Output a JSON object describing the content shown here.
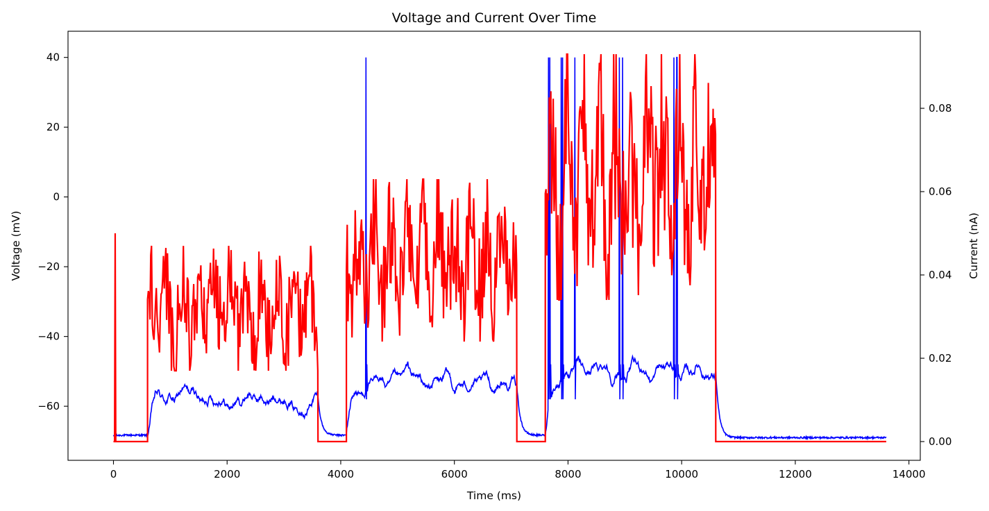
{
  "chart_data": {
    "type": "line",
    "title": "Voltage and Current Over Time",
    "xlabel": "Time (ms)",
    "ylabel_left": "Voltage (mV)",
    "ylabel_right": "Current (nA)",
    "xlim": [
      -800,
      14200
    ],
    "ylim_left": [
      -75.5,
      47.5
    ],
    "ylim_right": [
      -0.0045,
      0.0985
    ],
    "x_ticks": [
      0,
      2000,
      4000,
      6000,
      8000,
      10000,
      12000,
      14000
    ],
    "x_tick_labels": [
      "0",
      "2000",
      "4000",
      "6000",
      "8000",
      "10000",
      "12000",
      "14000"
    ],
    "y_left_ticks": [
      -60,
      -40,
      -20,
      0,
      20,
      40
    ],
    "y_left_tick_labels": [
      "−60",
      "−40",
      "−20",
      "0",
      "20",
      "40"
    ],
    "y_right_ticks": [
      0.0,
      0.02,
      0.04,
      0.06,
      0.08
    ],
    "y_right_tick_labels": [
      "0.00",
      "0.02",
      "0.04",
      "0.06",
      "0.08"
    ],
    "grid": false,
    "legend": "none",
    "series": [
      {
        "axis": "left",
        "color": "#0000ff",
        "baseline_mV": -68.5,
        "segments": [
          {
            "x": [
              0,
              600
            ],
            "mean": -68.3,
            "kind": "rest"
          },
          {
            "x": [
              600,
              3600
            ],
            "mean": -57.5,
            "kind": "drive"
          },
          {
            "x": [
              3600,
              4100
            ],
            "mean": -68.3,
            "kind": "rest"
          },
          {
            "x": [
              4100,
              7100
            ],
            "mean": -54.0,
            "kind": "drive"
          },
          {
            "x": [
              7100,
              7600
            ],
            "mean": -68.3,
            "kind": "rest"
          },
          {
            "x": [
              7600,
              10600
            ],
            "mean": -50.0,
            "kind": "drive"
          },
          {
            "x": [
              10600,
              13600
            ],
            "mean": -69.0,
            "kind": "rest"
          }
        ],
        "spikes_ms": [
          4440,
          7650,
          7680,
          7880,
          7900,
          8120,
          8900,
          8960,
          9860,
          9910,
          9920
        ],
        "spike_peak_mV": 40
      },
      {
        "axis": "right",
        "color": "#ff0000",
        "pulse": {
          "x": 30,
          "value": 0.05
        },
        "segments": [
          {
            "x": [
              0,
              600
            ],
            "mean": 0.0
          },
          {
            "x": [
              600,
              3600
            ],
            "mean": 0.032,
            "min": 0.017,
            "max": 0.047
          },
          {
            "x": [
              3600,
              4100
            ],
            "mean": 0.0
          },
          {
            "x": [
              4100,
              7100
            ],
            "mean": 0.043,
            "min": 0.024,
            "max": 0.063
          },
          {
            "x": [
              7100,
              7600
            ],
            "mean": 0.0
          },
          {
            "x": [
              7600,
              10600
            ],
            "mean": 0.064,
            "min": 0.034,
            "max": 0.093
          },
          {
            "x": [
              10600,
              13600
            ],
            "mean": 0.0
          }
        ]
      }
    ]
  }
}
